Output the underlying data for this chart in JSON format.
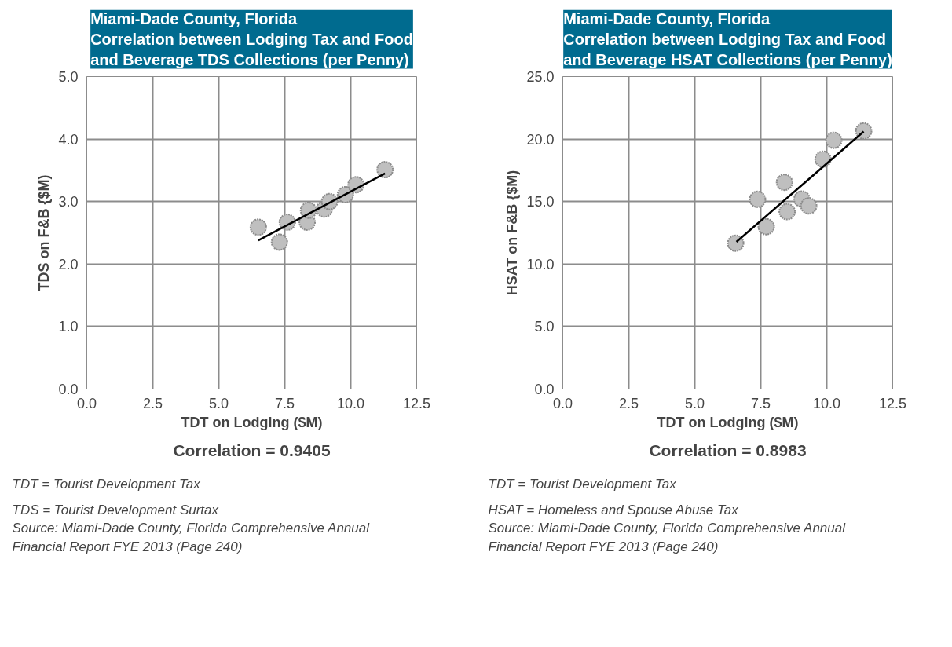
{
  "chart_data": [
    {
      "type": "scatter",
      "title": "Miami-Dade County, Florida\nCorrelation between Lodging Tax and Food\nand Beverage TDS Collections (per Penny)",
      "xlabel": "TDT on Lodging ($M)",
      "ylabel": "TDS on F&B {$M)",
      "x": [
        6.5,
        7.3,
        7.6,
        8.35,
        8.4,
        9.0,
        9.2,
        9.8,
        10.2,
        11.3
      ],
      "series": [
        {
          "color": "#bfbfbf",
          "marker": "circle",
          "values": [
            2.59,
            2.35,
            2.67,
            2.67,
            2.86,
            2.88,
            3.0,
            3.11,
            3.27,
            3.51
          ]
        },
        {
          "type": "line",
          "color": "#000000",
          "x": [
            6.5,
            11.3
          ],
          "values": [
            2.38,
            3.45
          ]
        }
      ],
      "xlim": [
        0,
        12.5
      ],
      "ylim": [
        0,
        5
      ],
      "xticks": [
        {
          "value": 0,
          "label": "0.0"
        },
        2.5,
        {
          "value": 5,
          "label": "5.0"
        },
        7.5,
        {
          "value": 10,
          "label": "10.0"
        },
        12.5
      ],
      "yticks": [
        {
          "value": 0,
          "label": "0.0"
        },
        {
          "value": 1,
          "label": "1.0"
        },
        {
          "value": 2,
          "label": "2.0"
        },
        {
          "value": 3,
          "label": "3.0"
        },
        {
          "value": 4,
          "label": "4.0"
        },
        {
          "value": 5,
          "label": "5.0"
        }
      ],
      "grid": true,
      "annotations": [
        "Correlation = 0.9405",
        "TDT = Tourist Development Tax",
        "TDS = Tourist Development Surtax",
        "Source: Miami-Dade County, Florida Comprehensive Annual\nFinancial Report FYE 2013 (Page 240)"
      ]
    },
    {
      "type": "scatter",
      "title": "Miami-Dade County, Florida\nCorrelation between Lodging Tax and Food\nand Beverage HSAT Collections (per Penny)",
      "xlabel": "TDT on Lodging ($M)",
      "ylabel": "HSAT on F&B {$M)",
      "x": [
        6.55,
        7.38,
        7.71,
        8.4,
        8.5,
        9.06,
        9.32,
        9.86,
        10.27,
        11.4
      ],
      "series": [
        {
          "color": "#bfbfbf",
          "marker": "circle",
          "values": [
            11.67,
            15.18,
            12.99,
            16.54,
            14.19,
            15.2,
            14.65,
            18.39,
            19.9,
            20.65
          ]
        },
        {
          "type": "line",
          "color": "#000000",
          "x": [
            6.58,
            11.4
          ],
          "values": [
            11.78,
            20.6
          ]
        }
      ],
      "xlim": [
        0,
        12.5
      ],
      "ylim": [
        0,
        25
      ],
      "xticks": [
        {
          "value": 0,
          "label": "0.0"
        },
        2.5,
        {
          "value": 5,
          "label": "5.0"
        },
        7.5,
        {
          "value": 10,
          "label": "10.0"
        },
        12.5
      ],
      "yticks": [
        {
          "value": 0,
          "label": "0.0"
        },
        {
          "value": 5,
          "label": "5.0"
        },
        {
          "value": 10,
          "label": "10.0"
        },
        {
          "value": 15,
          "label": "15.0"
        },
        {
          "value": 20,
          "label": "20.0"
        },
        {
          "value": 25,
          "label": "25.0"
        }
      ],
      "grid": true,
      "annotations": [
        "Correlation = 0.8983",
        "TDT = Tourist Development Tax",
        "HSAT = Homeless and Spouse Abuse Tax",
        "Source: Miami-Dade County, Florida Comprehensive Annual\nFinancial Report FYE 2013 (Page 240)"
      ]
    }
  ]
}
